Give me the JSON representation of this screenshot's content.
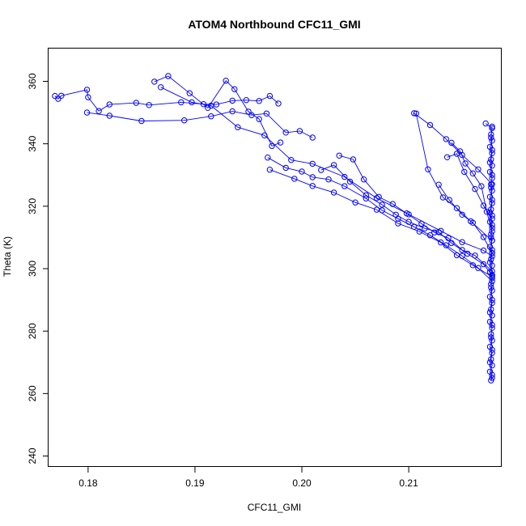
{
  "chart_data": {
    "type": "line",
    "title": "ATOM4 Northbound CFC11_GMI",
    "xlabel": "CFC11_GMI",
    "ylabel": "Theta (K)",
    "xlim": [
      0.1763,
      0.2187
    ],
    "ylim": [
      236.5,
      370.5
    ],
    "grid": false,
    "x_ticks": [
      0.18,
      0.19,
      0.2,
      0.21
    ],
    "x_tick_labels": [
      "0.18",
      "0.19",
      "0.20",
      "0.21"
    ],
    "y_ticks": [
      240,
      260,
      280,
      300,
      320,
      340,
      360
    ],
    "y_tick_labels": [
      "240",
      "260",
      "280",
      "300",
      "320",
      "340",
      "360"
    ],
    "marker": "open-circle",
    "color": "#0000ff",
    "series": [
      {
        "x": [
          0.1769,
          0.1772,
          0.1775,
          0.1799,
          0.18,
          0.181,
          0.182,
          0.1845,
          0.1857,
          0.1887,
          0.1908,
          0.192,
          0.1935,
          0.1948,
          0.196,
          0.197,
          0.1978
        ],
        "y": [
          355.3,
          354.4,
          355.4,
          357.3,
          354.9,
          350.5,
          352.6,
          353.1,
          352.4,
          353.3,
          352.7,
          352.6,
          353.8,
          354.0,
          353.7,
          355.3,
          352.9
        ]
      },
      {
        "x": [
          0.1799,
          0.182,
          0.185,
          0.189,
          0.1915,
          0.1935,
          0.1953,
          0.1967,
          0.1985,
          0.1998,
          0.201
        ],
        "y": [
          350.0,
          349.0,
          347.3,
          347.5,
          348.8,
          350.4,
          349.2,
          349.7,
          343.6,
          344.1,
          342.0
        ]
      },
      {
        "x": [
          0.1862,
          0.1875,
          0.1895,
          0.1912,
          0.1929,
          0.1937,
          0.195,
          0.196,
          0.1972,
          0.198
        ],
        "y": [
          359.9,
          361.7,
          356.2,
          351.5,
          360.2,
          357.5,
          350.3,
          347.9,
          339.3,
          340.4
        ]
      },
      {
        "x": [
          0.1868,
          0.1897,
          0.1915,
          0.194,
          0.1965,
          0.199,
          0.201,
          0.204,
          0.207,
          0.21,
          0.213,
          0.215,
          0.217,
          0.2178
        ],
        "y": [
          358.1,
          353.3,
          352.2,
          345.3,
          342.7,
          334.8,
          333.6,
          329.4,
          322.6,
          317.4,
          312.1,
          308.5,
          305.8,
          304.0
        ]
      },
      {
        "x": [
          0.1968,
          0.1985,
          0.2,
          0.201,
          0.2025,
          0.204,
          0.206,
          0.2075,
          0.209,
          0.2105,
          0.212,
          0.2135,
          0.215,
          0.2165,
          0.2178
        ],
        "y": [
          335.6,
          332.3,
          331.1,
          329.3,
          328.6,
          326.4,
          322.5,
          318.7,
          316.0,
          313.4,
          310.7,
          307.5,
          304.1,
          300.2,
          296.0
        ]
      },
      {
        "x": [
          0.197,
          0.1993,
          0.201,
          0.203,
          0.205,
          0.207,
          0.209,
          0.211,
          0.213,
          0.2145,
          0.216,
          0.2178
        ],
        "y": [
          331.7,
          328.8,
          326.5,
          324.4,
          321.2,
          318.9,
          314.5,
          311.9,
          308.4,
          304.3,
          301.1,
          297.4
        ]
      },
      {
        "x": [
          0.2018,
          0.203,
          0.2045,
          0.206,
          0.2075,
          0.2088,
          0.21,
          0.2115,
          0.2128,
          0.214,
          0.2155,
          0.217,
          0.2178
        ],
        "y": [
          331.6,
          333.2,
          327.9,
          323.5,
          320.5,
          317.3,
          315.0,
          312.9,
          311.7,
          308.2,
          304.8,
          301.4,
          298.0
        ]
      },
      {
        "x": [
          0.2035,
          0.2048,
          0.2058,
          0.2072,
          0.2085,
          0.2098,
          0.2112,
          0.2124,
          0.2137,
          0.215,
          0.2162,
          0.2178
        ],
        "y": [
          336.2,
          335.0,
          328.6,
          323.0,
          320.7,
          317.7,
          314.4,
          311.6,
          309.8,
          306.0,
          304.2,
          299.2
        ]
      },
      {
        "x": [
          0.2105,
          0.212,
          0.2135,
          0.215,
          0.2165,
          0.2178
        ],
        "y": [
          349.8,
          346.0,
          341.5,
          336.4,
          331.8,
          327.0
        ]
      },
      {
        "x": [
          0.2107,
          0.2118,
          0.2132,
          0.2145,
          0.2158,
          0.2178
        ],
        "y": [
          349.7,
          331.8,
          322.8,
          319.4,
          315.2,
          309.0
        ]
      },
      {
        "x": [
          0.214,
          0.2148,
          0.2153,
          0.216,
          0.2168,
          0.2173,
          0.2178
        ],
        "y": [
          340.3,
          337.6,
          333.7,
          330.5,
          326.4,
          318.2,
          312.0
        ]
      },
      {
        "x": [
          0.2136,
          0.2145,
          0.2152,
          0.2162,
          0.217,
          0.2178
        ],
        "y": [
          335.7,
          336.8,
          331.0,
          325.5,
          320.2,
          316.0
        ]
      },
      {
        "x": [
          0.2128,
          0.2138,
          0.215,
          0.216,
          0.217,
          0.2178
        ],
        "y": [
          326.9,
          322.0,
          317.3,
          314.7,
          310.1,
          305.0
        ]
      },
      {
        "x": [
          0.2172,
          0.2178,
          0.2177,
          0.2178,
          0.2176,
          0.2178,
          0.2177,
          0.2178,
          0.2176,
          0.2178,
          0.2177,
          0.2178,
          0.2176,
          0.2178,
          0.2177,
          0.2178,
          0.2176,
          0.2178,
          0.2177,
          0.2178,
          0.2176,
          0.2178,
          0.2177,
          0.2178,
          0.2176,
          0.2178,
          0.2177,
          0.2178,
          0.2176,
          0.2178,
          0.2177,
          0.2178,
          0.2176,
          0.2178,
          0.2177,
          0.2178,
          0.2176,
          0.2178,
          0.2177,
          0.2178,
          0.2176,
          0.2178,
          0.2177,
          0.2178,
          0.2176,
          0.2178,
          0.2177,
          0.2178,
          0.2176,
          0.2178,
          0.2177,
          0.2178,
          0.2176,
          0.2178,
          0.2177,
          0.2178,
          0.2176,
          0.2178,
          0.2177,
          0.2178,
          0.2176,
          0.2178,
          0.2177,
          0.2178
        ],
        "y": [
          346.5,
          345.0,
          343.0,
          341.0,
          339.0,
          337.0,
          335.0,
          333.0,
          331.0,
          329.0,
          327.0,
          325.0,
          323.0,
          321.0,
          319.0,
          317.0,
          315.0,
          313.0,
          311.0,
          309.0,
          307.0,
          305.0,
          303.0,
          301.0,
          299.0,
          297.0,
          295.0,
          293.0,
          291.0,
          289.0,
          287.0,
          285.0,
          283.0,
          281.0,
          279.0,
          277.0,
          275.0,
          273.0,
          271.0,
          269.0,
          267.0,
          265.0,
          264.2,
          266.0,
          270.0,
          274.0,
          278.0,
          282.0,
          286.0,
          290.0,
          294.0,
          298.0,
          302.0,
          306.0,
          310.0,
          314.0,
          318.0,
          322.0,
          326.0,
          330.0,
          334.0,
          338.0,
          342.0,
          345.5
        ]
      }
    ]
  }
}
